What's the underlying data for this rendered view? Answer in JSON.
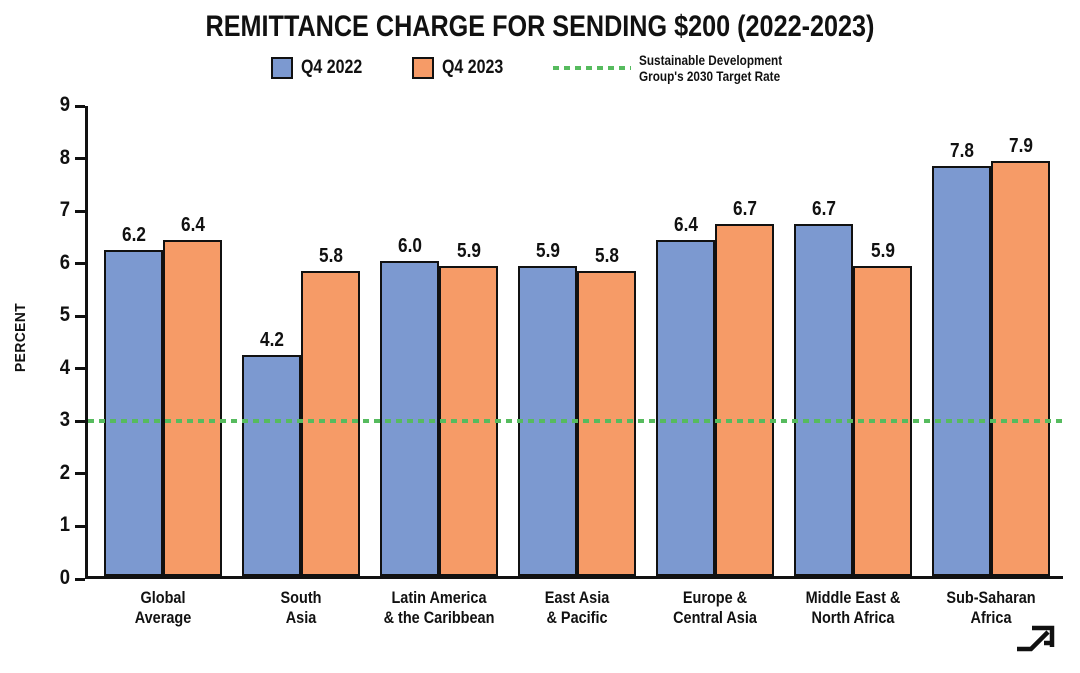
{
  "page": {
    "title": "REMITTANCE CHARGE FOR SENDING $200 (2022-2023)"
  },
  "legend": {
    "series": [
      {
        "label": "Q4 2022",
        "color": "#7C99D0"
      },
      {
        "label": "Q4 2023",
        "color": "#F69B67"
      }
    ],
    "target": {
      "label_line1": "Sustainable Development",
      "label_line2": "Group's 2030 Target Rate",
      "color": "#56BB5E"
    }
  },
  "chart_data": {
    "type": "bar",
    "title": "REMITTANCE CHARGE FOR SENDING $200 (2022-2023)",
    "categories": [
      [
        "Global",
        "Average"
      ],
      [
        "South",
        "Asia"
      ],
      [
        "Latin America",
        "& the Caribbean"
      ],
      [
        "East Asia",
        "& Pacific"
      ],
      [
        "Europe &",
        "Central Asia"
      ],
      [
        "Middle East &",
        "North Africa"
      ],
      [
        "Sub-Saharan",
        "Africa"
      ]
    ],
    "series": [
      {
        "name": "Q4 2022",
        "color": "#7C99D0",
        "values": [
          6.2,
          4.2,
          6.0,
          5.9,
          6.4,
          6.7,
          7.8
        ]
      },
      {
        "name": "Q4 2023",
        "color": "#F69B67",
        "values": [
          6.4,
          5.8,
          5.9,
          5.8,
          6.7,
          5.9,
          7.9
        ]
      }
    ],
    "xlabel": "",
    "ylabel": "PERCENT",
    "ylim": [
      0,
      9
    ],
    "ytick_step": 1,
    "grid": false,
    "legend_position": "top",
    "bar_border_color": "#111111",
    "value_label_decimals": 1,
    "target_line": {
      "value": 3,
      "color": "#56BB5E",
      "style": "dashed",
      "label": "Sustainable Development Group's 2030 Target Rate"
    }
  },
  "icons": {
    "corner_arrow": "arrow-up-right"
  }
}
